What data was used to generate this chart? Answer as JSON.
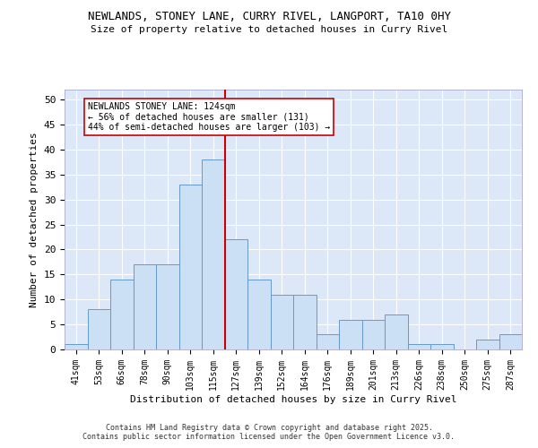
{
  "title_line1": "NEWLANDS, STONEY LANE, CURRY RIVEL, LANGPORT, TA10 0HY",
  "title_line2": "Size of property relative to detached houses in Curry Rivel",
  "xlabel": "Distribution of detached houses by size in Curry Rivel",
  "ylabel": "Number of detached properties",
  "categories": [
    "41sqm",
    "53sqm",
    "66sqm",
    "78sqm",
    "90sqm",
    "103sqm",
    "115sqm",
    "127sqm",
    "139sqm",
    "152sqm",
    "164sqm",
    "176sqm",
    "189sqm",
    "201sqm",
    "213sqm",
    "226sqm",
    "238sqm",
    "250sqm",
    "275sqm",
    "287sqm"
  ],
  "values": [
    1,
    8,
    14,
    17,
    17,
    33,
    38,
    22,
    14,
    11,
    11,
    3,
    6,
    6,
    7,
    1,
    1,
    0,
    2,
    3
  ],
  "bar_color": "#cce0f5",
  "bar_edge_color": "#6699cc",
  "vline_color": "#cc0000",
  "annotation_text": "NEWLANDS STONEY LANE: 124sqm\n← 56% of detached houses are smaller (131)\n44% of semi-detached houses are larger (103) →",
  "annotation_box_color": "white",
  "annotation_box_edge": "#cc0000",
  "ylim": [
    0,
    52
  ],
  "yticks": [
    0,
    5,
    10,
    15,
    20,
    25,
    30,
    35,
    40,
    45,
    50
  ],
  "background_color": "#dce8f8",
  "footer": "Contains HM Land Registry data © Crown copyright and database right 2025.\nContains public sector information licensed under the Open Government Licence v3.0."
}
